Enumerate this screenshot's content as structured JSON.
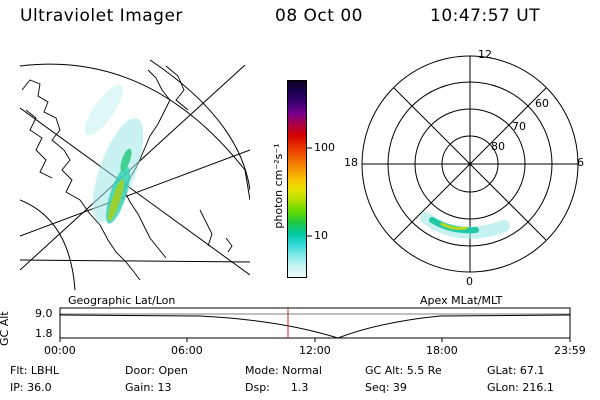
{
  "header": {
    "instrument": "Ultraviolet Imager",
    "date": "08 Oct 00",
    "time": "10:47:57 UT"
  },
  "colorbar": {
    "unit_label": "photon cm⁻²s⁻¹",
    "tick_labels": [
      "100",
      "10"
    ],
    "colors": [
      "#0d0020",
      "#1a0050",
      "#3a0070",
      "#7a0090",
      "#aa0044",
      "#d40000",
      "#e83000",
      "#f06000",
      "#f59000",
      "#fac000",
      "#e8e400",
      "#b0e000",
      "#60d800",
      "#20c840",
      "#00c8a0",
      "#30d8d8",
      "#80e8e8",
      "#c8f4f4",
      "#eefafa"
    ]
  },
  "geo_panel": {
    "label": "Geographic Lat/Lon"
  },
  "polar_panel": {
    "label": "Apex MLat/MLT",
    "mlt_labels": {
      "top": "12",
      "left": "18",
      "right": "6",
      "bottom": "0"
    },
    "lat_labels": [
      "60",
      "70",
      "80"
    ]
  },
  "altitude_plot": {
    "ylabel": "GC Alt",
    "yticks": [
      "9.0",
      "1.8"
    ],
    "xticks": [
      "00:00",
      "06:00",
      "12:00",
      "18:00",
      "23:59"
    ],
    "marker_color": "#cc2222"
  },
  "status": {
    "row1": {
      "flt": "Flt: LBHL",
      "door": "Door: Open",
      "mode": "Mode: Normal",
      "gcalt": "GC Alt: 5.5 Re",
      "glat": "GLat: 67.1"
    },
    "row2": {
      "ip": "IP: 36.0",
      "gain": "Gain: 13",
      "dsp": "Dsp:      1.3",
      "seq": "Seq: 39",
      "glon": "GLon: 216.1"
    }
  }
}
